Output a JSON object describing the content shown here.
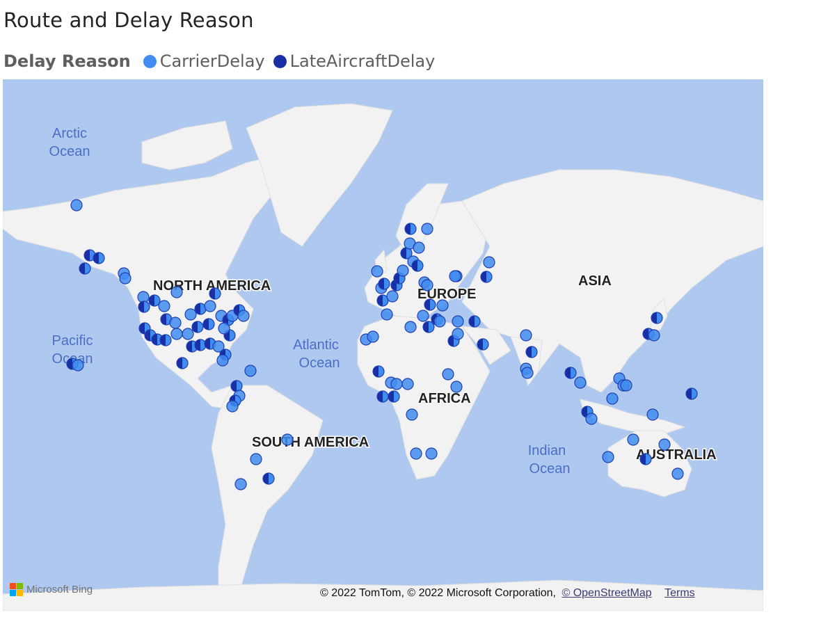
{
  "title": "Route and Delay Reason",
  "legend": {
    "title": "Delay Reason",
    "items": [
      {
        "label": "CarrierDelay",
        "color": "#418cf0"
      },
      {
        "label": "LateAircraftDelay",
        "color": "#1a2ea6"
      }
    ]
  },
  "map": {
    "ocean_color": "#aec8ef",
    "land_color": "#f2f2f2",
    "labels": {
      "continents": [
        "NORTH AMERICA",
        "SOUTH AMERICA",
        "EUROPE",
        "AFRICA",
        "ASIA",
        "AUSTRALIA"
      ],
      "arctic_ocean": [
        "Arctic",
        "Ocean"
      ],
      "pacific_ocean": [
        "Pacific",
        "Ocean"
      ],
      "atlantic_ocean": [
        "Atlantic",
        "Ocean"
      ],
      "indian_ocean": [
        "Indian",
        "Ocean"
      ]
    },
    "provider": "Microsoft Bing",
    "attribution": "© 2022 TomTom, © 2022 Microsoft Corporation,",
    "osm_link": "© OpenStreetMap",
    "terms_link": "Terms"
  }
}
